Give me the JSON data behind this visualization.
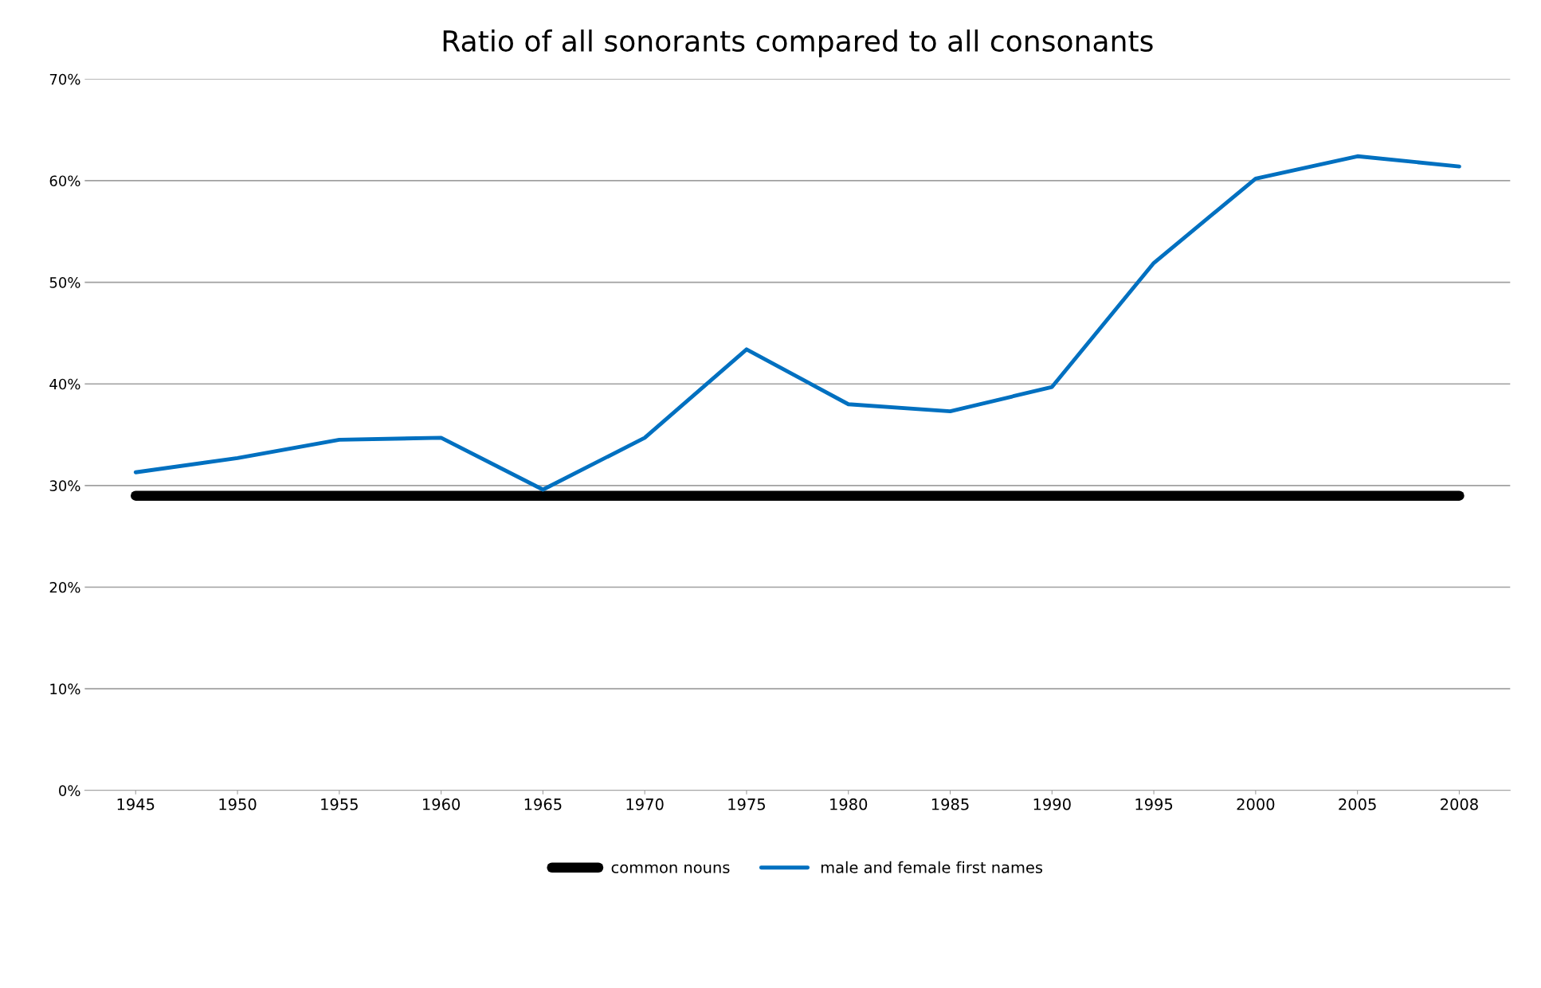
{
  "chart_data": {
    "type": "line",
    "title": "Ratio of all sonorants compared to all consonants",
    "categories": [
      "1945",
      "1950",
      "1955",
      "1960",
      "1965",
      "1970",
      "1975",
      "1980",
      "1985",
      "1990",
      "1995",
      "2000",
      "2005",
      "2008"
    ],
    "series": [
      {
        "name": "common nouns",
        "color": "#000000",
        "values": [
          29.0,
          29.0,
          29.0,
          29.0,
          29.0,
          29.0,
          29.0,
          29.0,
          29.0,
          29.0,
          29.0,
          29.0,
          29.0,
          29.0
        ]
      },
      {
        "name": "male and female first names",
        "color": "#0070c0",
        "values": [
          31.3,
          32.7,
          34.5,
          34.7,
          29.6,
          34.7,
          43.4,
          38.0,
          37.3,
          39.7,
          51.9,
          60.2,
          62.4,
          61.4
        ]
      }
    ],
    "ylim": [
      0,
      70
    ],
    "yticks": [
      {
        "value": 0,
        "label": "0%"
      },
      {
        "value": 10,
        "label": "10%"
      },
      {
        "value": 20,
        "label": "20%"
      },
      {
        "value": 30,
        "label": "30%"
      },
      {
        "value": 40,
        "label": "40%"
      },
      {
        "value": 50,
        "label": "50%"
      },
      {
        "value": 60,
        "label": "60%"
      },
      {
        "value": 70,
        "label": "70%"
      }
    ],
    "grid": "y",
    "legend": "bottom",
    "marker": "none",
    "line_style": "solid"
  }
}
